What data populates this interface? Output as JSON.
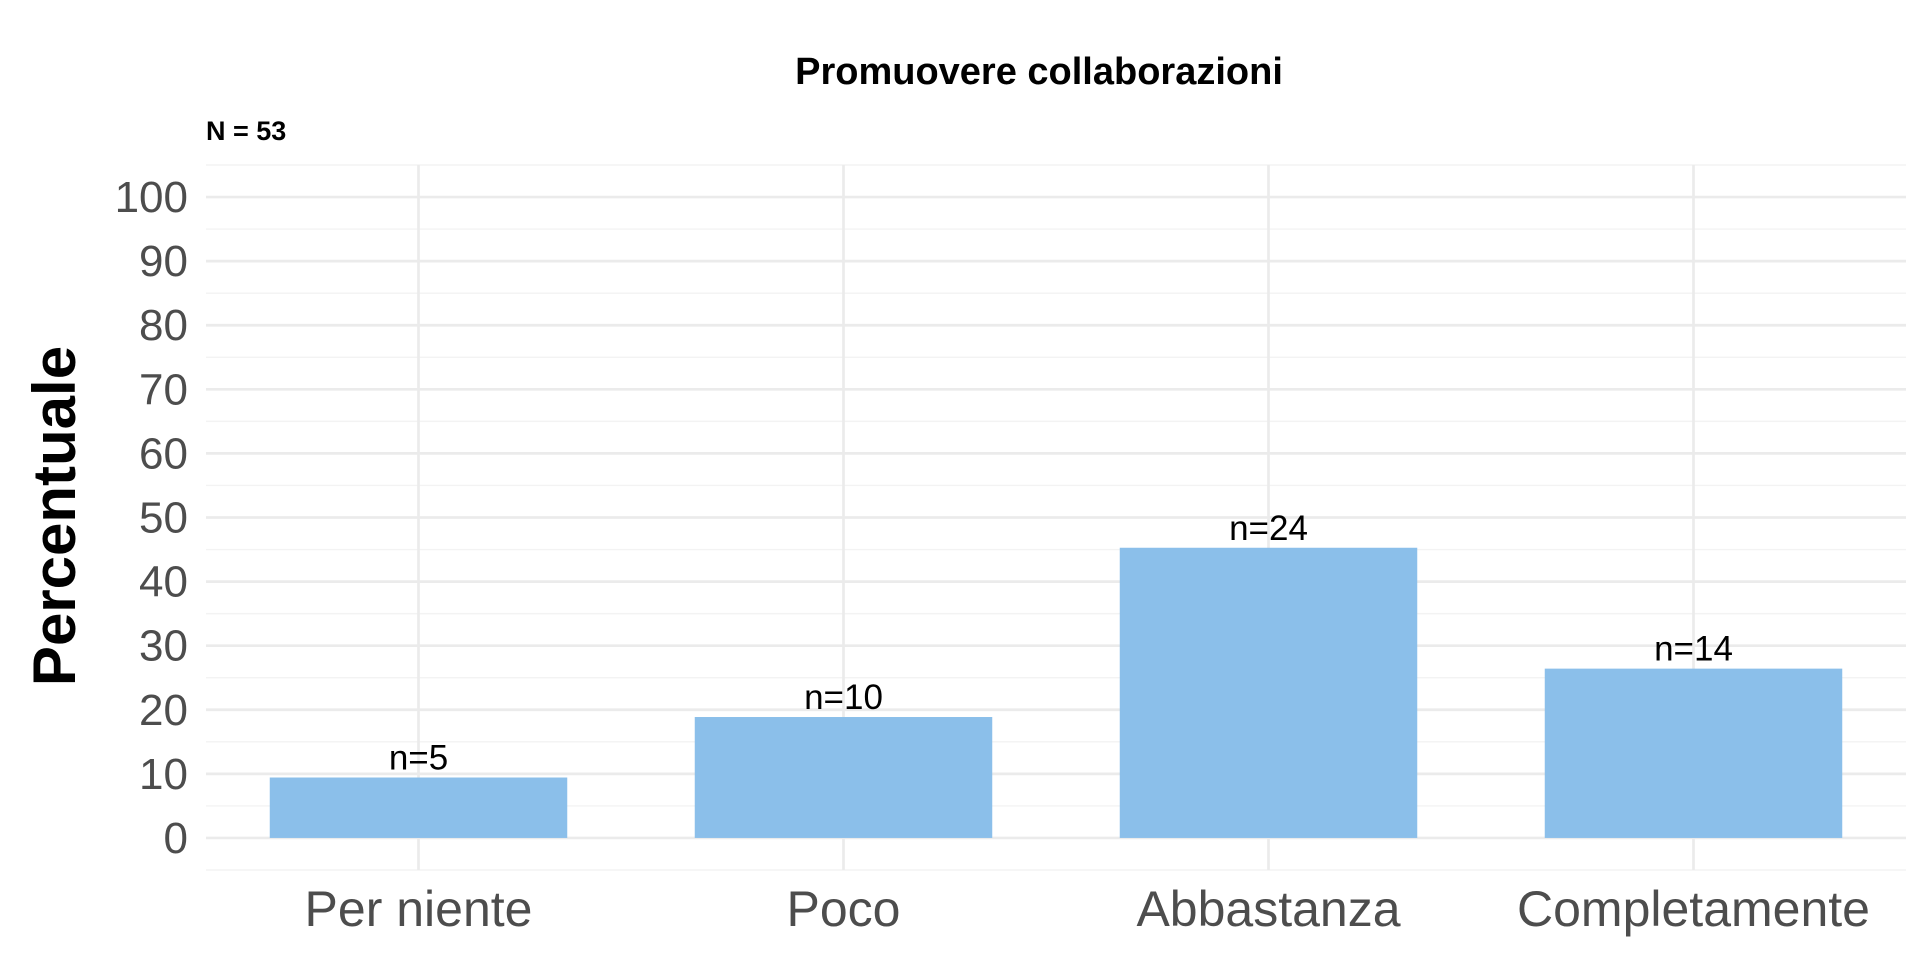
{
  "chart_data": {
    "type": "bar",
    "title": "Promuovere collaborazioni",
    "subtitle": "N = 53",
    "xlabel": "",
    "ylabel": "Percentuale",
    "categories": [
      "Per niente",
      "Poco",
      "Abbastanza",
      "Completamente"
    ],
    "values": [
      9.43,
      18.87,
      45.28,
      26.42
    ],
    "labels": [
      "n=5",
      "n=10",
      "n=24",
      "n=14"
    ],
    "ylim": [
      -5,
      105
    ],
    "yticks": [
      0,
      10,
      20,
      30,
      40,
      50,
      60,
      70,
      80,
      90,
      100
    ],
    "ytick_labels": [
      "0",
      "10",
      "20",
      "30",
      "40",
      "50",
      "60",
      "70",
      "80",
      "90",
      "100"
    ],
    "grid": true,
    "bar_color": "#8BBFEA",
    "grid_color": "#EBEBEB",
    "tick_label_color": "#4D4D4D"
  }
}
